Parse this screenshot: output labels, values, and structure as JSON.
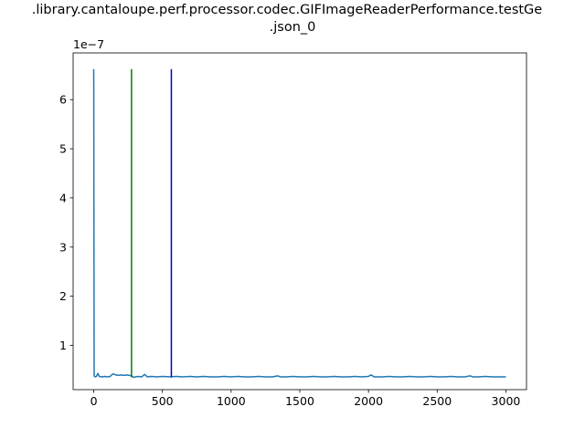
{
  "chart_data": {
    "type": "line",
    "title_line1": ".library.cantaloupe.perf.processor.codec.GIFImageReaderPerformance.testGe",
    "title_line2": ".json_0",
    "xlabel": "",
    "ylabel": "",
    "y_offset_label": "1e−7",
    "xlim": [
      -150,
      3150
    ],
    "ylim": [
      1e-08,
      6.95e-07
    ],
    "x_ticks": [
      0,
      500,
      1000,
      1500,
      2000,
      2500,
      3000
    ],
    "x_tick_labels": [
      "0",
      "500",
      "1000",
      "1500",
      "2000",
      "2500",
      "3000"
    ],
    "y_ticks": [
      1e-07,
      2e-07,
      3e-07,
      4e-07,
      5e-07,
      6e-07
    ],
    "y_tick_labels": [
      "1",
      "2",
      "3",
      "4",
      "5",
      "6"
    ],
    "grid": false,
    "series": [
      {
        "color": "#1f77b4",
        "points": [
          [
            0,
            6.62e-07
          ],
          [
            3,
            3.8e-08
          ],
          [
            10,
            3.6e-08
          ],
          [
            20,
            3.7e-08
          ],
          [
            30,
            4.3e-08
          ],
          [
            40,
            3.7e-08
          ],
          [
            60,
            3.6e-08
          ],
          [
            80,
            3.7e-08
          ],
          [
            100,
            3.6e-08
          ],
          [
            120,
            3.7e-08
          ],
          [
            130,
            4e-08
          ],
          [
            140,
            4.2e-08
          ],
          [
            160,
            4e-08
          ],
          [
            180,
            3.9e-08
          ],
          [
            200,
            4e-08
          ],
          [
            220,
            3.9e-08
          ],
          [
            240,
            4e-08
          ],
          [
            260,
            3.9e-08
          ],
          [
            275,
            3.8e-08
          ],
          [
            290,
            3.5e-08
          ],
          [
            320,
            3.7e-08
          ],
          [
            350,
            3.6e-08
          ],
          [
            370,
            4.1e-08
          ],
          [
            390,
            3.6e-08
          ],
          [
            420,
            3.7e-08
          ],
          [
            460,
            3.6e-08
          ],
          [
            500,
            3.7e-08
          ],
          [
            560,
            3.6e-08
          ],
          [
            600,
            3.7e-08
          ],
          [
            650,
            3.6e-08
          ],
          [
            700,
            3.7e-08
          ],
          [
            750,
            3.6e-08
          ],
          [
            800,
            3.7e-08
          ],
          [
            850,
            3.6e-08
          ],
          [
            900,
            3.6e-08
          ],
          [
            950,
            3.7e-08
          ],
          [
            1000,
            3.6e-08
          ],
          [
            1050,
            3.7e-08
          ],
          [
            1100,
            3.6e-08
          ],
          [
            1150,
            3.6e-08
          ],
          [
            1200,
            3.7e-08
          ],
          [
            1250,
            3.6e-08
          ],
          [
            1300,
            3.6e-08
          ],
          [
            1340,
            3.8e-08
          ],
          [
            1360,
            3.6e-08
          ],
          [
            1400,
            3.6e-08
          ],
          [
            1450,
            3.7e-08
          ],
          [
            1500,
            3.6e-08
          ],
          [
            1550,
            3.6e-08
          ],
          [
            1600,
            3.7e-08
          ],
          [
            1650,
            3.6e-08
          ],
          [
            1700,
            3.6e-08
          ],
          [
            1750,
            3.7e-08
          ],
          [
            1800,
            3.6e-08
          ],
          [
            1850,
            3.6e-08
          ],
          [
            1900,
            3.7e-08
          ],
          [
            1950,
            3.6e-08
          ],
          [
            2000,
            3.7e-08
          ],
          [
            2020,
            4e-08
          ],
          [
            2040,
            3.6e-08
          ],
          [
            2100,
            3.6e-08
          ],
          [
            2150,
            3.7e-08
          ],
          [
            2200,
            3.6e-08
          ],
          [
            2250,
            3.6e-08
          ],
          [
            2300,
            3.7e-08
          ],
          [
            2350,
            3.6e-08
          ],
          [
            2400,
            3.6e-08
          ],
          [
            2450,
            3.7e-08
          ],
          [
            2500,
            3.6e-08
          ],
          [
            2550,
            3.6e-08
          ],
          [
            2600,
            3.7e-08
          ],
          [
            2650,
            3.6e-08
          ],
          [
            2700,
            3.6e-08
          ],
          [
            2740,
            3.8e-08
          ],
          [
            2760,
            3.6e-08
          ],
          [
            2800,
            3.6e-08
          ],
          [
            2850,
            3.7e-08
          ],
          [
            2900,
            3.6e-08
          ],
          [
            2950,
            3.6e-08
          ],
          [
            3000,
            3.6e-08
          ]
        ]
      }
    ],
    "vertical_lines": [
      {
        "x": 275,
        "y0": 3.5e-08,
        "y1": 6.62e-07,
        "color": "#008000"
      },
      {
        "x": 565,
        "y0": 3.5e-08,
        "y1": 6.62e-07,
        "color": "#0000cc"
      }
    ]
  }
}
